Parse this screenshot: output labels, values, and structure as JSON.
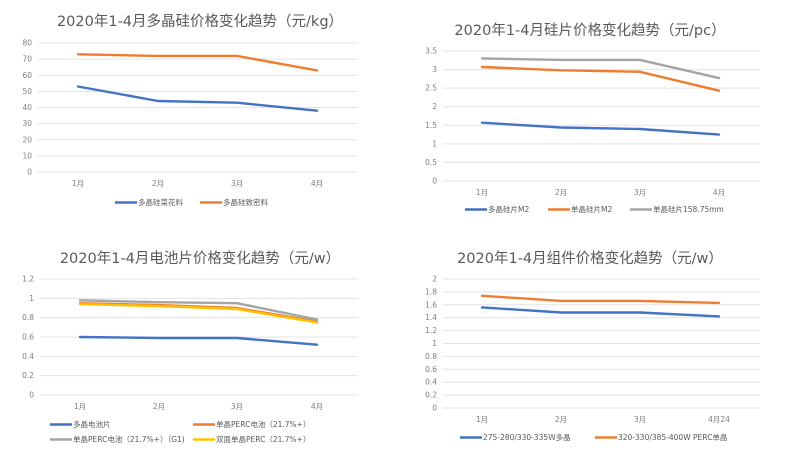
{
  "colors": {
    "blue": "#4472c4",
    "orange": "#ed7d31",
    "gray": "#a5a5a5",
    "yellow": "#ffc000"
  },
  "chart_data": [
    {
      "type": "line",
      "title": "2020年1-4月多晶硅价格变化趋势（元/kg）",
      "xlabel": "",
      "ylabel": "",
      "categories": [
        "1月",
        "2月",
        "3月",
        "4月"
      ],
      "ylim": [
        0,
        80
      ],
      "yticks": [
        0,
        10,
        20,
        30,
        40,
        50,
        60,
        70,
        80
      ],
      "ytick_labels": [
        "0",
        "10",
        "20",
        "30",
        "40",
        "50",
        "60",
        "70",
        "80"
      ],
      "grid": true,
      "legend_position": "bottom",
      "series": [
        {
          "name": "多晶硅菜花料",
          "color": "#4472c4",
          "values": [
            53,
            44,
            43,
            38
          ]
        },
        {
          "name": "多晶硅致密料",
          "color": "#ed7d31",
          "values": [
            73,
            72,
            72,
            63
          ]
        }
      ]
    },
    {
      "type": "line",
      "title": "2020年1-4月硅片价格变化趋势（元/pc）",
      "xlabel": "",
      "ylabel": "",
      "categories": [
        "1月",
        "2月",
        "3月",
        "4月"
      ],
      "ylim": [
        0,
        3.5
      ],
      "yticks": [
        0,
        0.5,
        1,
        1.5,
        2,
        2.5,
        3,
        3.5
      ],
      "ytick_labels": [
        "0",
        "0.5",
        "1",
        "1.5",
        "2",
        "2.5",
        "3",
        "3.5"
      ],
      "grid": true,
      "legend_position": "bottom",
      "series": [
        {
          "name": "多晶硅片M2",
          "color": "#4472c4",
          "values": [
            1.57,
            1.44,
            1.4,
            1.25
          ]
        },
        {
          "name": "单晶硅片M2",
          "color": "#ed7d31",
          "values": [
            3.07,
            2.98,
            2.94,
            2.43
          ]
        },
        {
          "name": "单晶硅片158.75mm",
          "color": "#a5a5a5",
          "values": [
            3.3,
            3.26,
            3.26,
            2.77
          ]
        }
      ]
    },
    {
      "type": "line",
      "title": "2020年1-4月电池片价格变化趋势（元/w）",
      "xlabel": "",
      "ylabel": "",
      "categories": [
        "1月",
        "2月",
        "3月",
        "4月"
      ],
      "ylim": [
        0,
        1.2
      ],
      "yticks": [
        0,
        0.2,
        0.4,
        0.6,
        0.8,
        1,
        1.2
      ],
      "ytick_labels": [
        "0",
        "0.2",
        "0.4",
        "0.6",
        "0.8",
        "1",
        "1.2"
      ],
      "grid": true,
      "legend_position": "bottom",
      "series": [
        {
          "name": "多晶电池片",
          "color": "#4472c4",
          "values": [
            0.6,
            0.59,
            0.59,
            0.52
          ]
        },
        {
          "name": "单晶PERC电池（21.7%+）",
          "color": "#ed7d31",
          "values": [
            0.95,
            0.93,
            0.9,
            0.76
          ]
        },
        {
          "name": "单晶PERC电池（21.7%+）（G1)",
          "color": "#a5a5a5",
          "values": [
            0.98,
            0.96,
            0.95,
            0.78
          ]
        },
        {
          "name": "双面单晶PERC（21.7%+）",
          "color": "#ffc000",
          "values": [
            0.94,
            0.92,
            0.89,
            0.75
          ]
        }
      ]
    },
    {
      "type": "line",
      "title": "2020年1-4月组件价格变化趋势（元/w）",
      "xlabel": "",
      "ylabel": "",
      "categories": [
        "1月",
        "2月",
        "3月",
        "4月24"
      ],
      "ylim": [
        0,
        2
      ],
      "yticks": [
        0,
        0.2,
        0.4,
        0.6,
        0.8,
        1,
        1.2,
        1.4,
        1.6,
        1.8,
        2
      ],
      "ytick_labels": [
        "0",
        "0.2",
        "0.4",
        "0.6",
        "0.8",
        "1",
        "1.2",
        "1.4",
        "1.6",
        "1.8",
        "2"
      ],
      "grid": true,
      "legend_position": "bottom",
      "series": [
        {
          "name": "275-280/330-335W多晶",
          "color": "#4472c4",
          "values": [
            1.56,
            1.48,
            1.48,
            1.42
          ]
        },
        {
          "name": "320-330/385-400W PERC单晶",
          "color": "#ed7d31",
          "values": [
            1.74,
            1.66,
            1.66,
            1.63
          ]
        }
      ]
    }
  ]
}
